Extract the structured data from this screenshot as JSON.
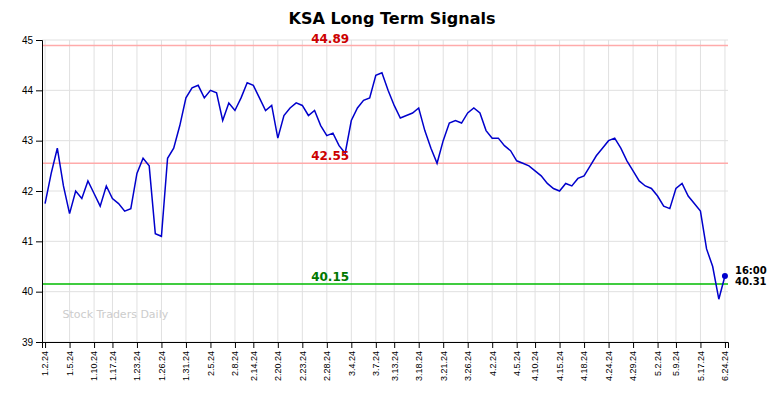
{
  "chart_data": {
    "type": "line",
    "title": "KSA Long Term Signals",
    "color": "#0000cc",
    "grid": true,
    "ylim": [
      39,
      45
    ],
    "yticks": [
      39,
      40,
      41,
      42,
      43,
      44,
      45
    ],
    "categories": [
      "1.2.24",
      null,
      null,
      null,
      "1.5.24",
      null,
      null,
      null,
      "1.10.24",
      null,
      null,
      "1.17.24",
      null,
      null,
      null,
      "1.23.24",
      null,
      null,
      null,
      "1.26.24",
      null,
      null,
      null,
      "1.31.24",
      null,
      null,
      null,
      "2.5.24",
      null,
      null,
      null,
      "2.8.24",
      null,
      null,
      "2.14.24",
      null,
      null,
      null,
      "2.20.24",
      null,
      null,
      null,
      "2.23.24",
      null,
      null,
      null,
      "2.28.24",
      null,
      null,
      null,
      "3.4.24",
      null,
      null,
      null,
      "3.7.24",
      null,
      null,
      "3.13.24",
      null,
      null,
      null,
      "3.18.24",
      null,
      null,
      null,
      "3.21.24",
      null,
      null,
      null,
      "3.26.24",
      null,
      null,
      null,
      "4.2.24",
      null,
      null,
      null,
      "4.5.24",
      null,
      null,
      "4.10.24",
      null,
      null,
      null,
      "4.15.24",
      null,
      null,
      null,
      "4.18.24",
      null,
      null,
      null,
      "4.24.24",
      null,
      null,
      null,
      "4.29.24",
      null,
      null,
      null,
      "5.2.24",
      null,
      null,
      "5.9.24",
      null,
      null,
      null,
      "5.17.24",
      null,
      null,
      null,
      "6.24.24"
    ],
    "values": [
      41.75,
      42.35,
      42.85,
      42.1,
      41.55,
      42.0,
      41.85,
      42.2,
      41.95,
      41.7,
      42.1,
      41.85,
      41.75,
      41.6,
      41.65,
      42.35,
      42.65,
      42.5,
      41.15,
      41.1,
      42.65,
      42.85,
      43.3,
      43.85,
      44.05,
      44.1,
      43.85,
      44.0,
      43.95,
      43.4,
      43.75,
      43.6,
      43.85,
      44.15,
      44.1,
      43.85,
      43.6,
      43.7,
      43.05,
      43.5,
      43.65,
      43.75,
      43.7,
      43.5,
      43.6,
      43.3,
      43.1,
      43.15,
      42.9,
      42.75,
      43.4,
      43.65,
      43.8,
      43.85,
      44.3,
      44.35,
      44.0,
      43.7,
      43.45,
      43.5,
      43.55,
      43.65,
      43.2,
      42.85,
      42.55,
      43.0,
      43.35,
      43.4,
      43.35,
      43.55,
      43.65,
      43.55,
      43.2,
      43.05,
      43.05,
      42.9,
      42.8,
      42.6,
      42.55,
      42.5,
      42.4,
      42.3,
      42.15,
      42.05,
      42.0,
      42.15,
      42.1,
      42.25,
      42.3,
      42.5,
      42.7,
      42.85,
      43.0,
      43.05,
      42.85,
      42.6,
      42.4,
      42.2,
      42.1,
      42.05,
      41.9,
      41.7,
      41.65,
      42.05,
      42.15,
      41.9,
      41.75,
      41.6,
      40.85,
      40.5,
      39.85,
      40.31
    ],
    "reference_lines": [
      {
        "value": 44.89,
        "label": "44.89",
        "color": "#ffaaaa",
        "label_color": "#cc0000"
      },
      {
        "value": 42.55,
        "label": "42.55",
        "color": "#ffaaaa",
        "label_color": "#cc0000"
      },
      {
        "value": 40.15,
        "label": "40.15",
        "color": "#00bb00",
        "label_color": "#007700"
      }
    ],
    "annotations": [
      {
        "text": "16:00\n40.31",
        "x": 111,
        "y": 40.31
      }
    ],
    "watermark": "Stock Traders Daily"
  }
}
